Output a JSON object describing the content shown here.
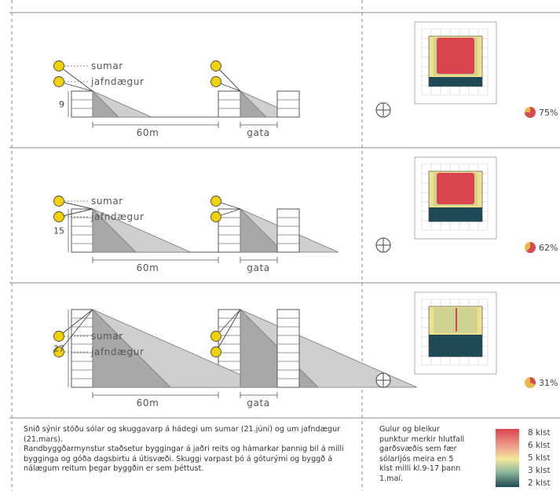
{
  "sections": [
    {
      "height_label": "9",
      "floors": 3,
      "pct": "75%",
      "sun_labels": [
        "sumar",
        "jafndægur"
      ],
      "distance_label": "60m",
      "street_label": "gata",
      "sun_heights": {
        "sumar": 23,
        "jafn": 19
      }
    },
    {
      "height_label": "15",
      "floors": 5,
      "pct": "62%",
      "sun_labels": [
        "sumar",
        "jafndægur"
      ],
      "distance_label": "60m",
      "street_label": "gata",
      "sun_heights": {
        "sumar": 38,
        "jafn": 32
      }
    },
    {
      "height_label": "27",
      "floors": 9,
      "pct": "31%",
      "sun_labels": [
        "sumar",
        "jafndægur"
      ],
      "distance_label": "60m",
      "street_label": "gata",
      "sun_heights": {
        "sumar": 68,
        "jafn": 62
      }
    }
  ],
  "caption_lines": [
    "Snið sýnir stöðu sólar og skuggavarp á hádegi um sumar (21.júní) og um jafndægur (21.mars).",
    "Randbyggðarmynstur staðsetur byggingar á jaðri reits og hámarkar þannig bil á milli bygginga og góða dagsbirtu á útisvæði. Skuggi varpast þó á göturými og byggð á nálægum reitum þegar byggðin er sem þéttust."
  ],
  "legend_text": "Gulur og bleikur punktur merkir hlutfall garðsvæðis sem fær sólarljós meira en 5 klst milli kl.9-17 þann 1.maí.",
  "legend": {
    "labels": [
      "8 klst",
      "6 klst",
      "5 klst",
      "3 klst",
      "2 klst"
    ],
    "colors": [
      "#d9444e",
      "#ee9e8c",
      "#f2e79a",
      "#8fb79a",
      "#1f4a55"
    ]
  },
  "colors": {
    "sun": "#f2d100",
    "sun_edge": "#4a4a4a",
    "shadow_summer": "#a8a8a8",
    "shadow_equinox": "#cfcfcf",
    "pie_yellow": "#e9b84a",
    "pie_pink": "#d64a52",
    "plan_red": "#d9444e",
    "plan_yellow": "#f0e18c",
    "plan_green": "#8fb79a",
    "plan_teal": "#1f4a55"
  }
}
